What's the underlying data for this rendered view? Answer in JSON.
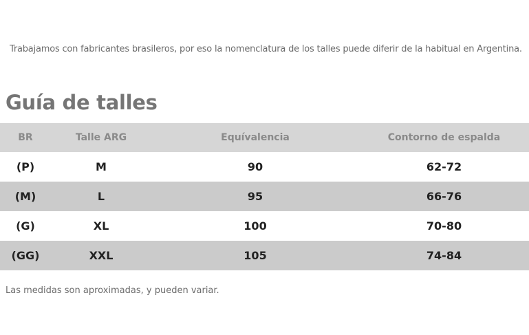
{
  "intro_text": "Trabajamos con fabricantes brasileros, por eso la nomenclatura de los talles puede diferir de la habitual en Argentina.",
  "title": "Guía de talles",
  "table": {
    "headers": [
      "BR",
      "Talle ARG",
      "Equívalencia",
      "Contorno de espalda"
    ],
    "rows": [
      [
        "(P)",
        "M",
        "90",
        "62-72"
      ],
      [
        "(M)",
        "L",
        "95",
        "66-76"
      ],
      [
        "(G)",
        "XL",
        "100",
        "70-80"
      ],
      [
        "(GG)",
        "XXL",
        "105",
        "74-84"
      ]
    ]
  },
  "footnote": "Las medidas son aproximadas, y pueden variar.",
  "colors": {
    "header_bg": "#d6d6d6",
    "stripe_bg": "#cbcbcb",
    "title_text": "#757575"
  }
}
